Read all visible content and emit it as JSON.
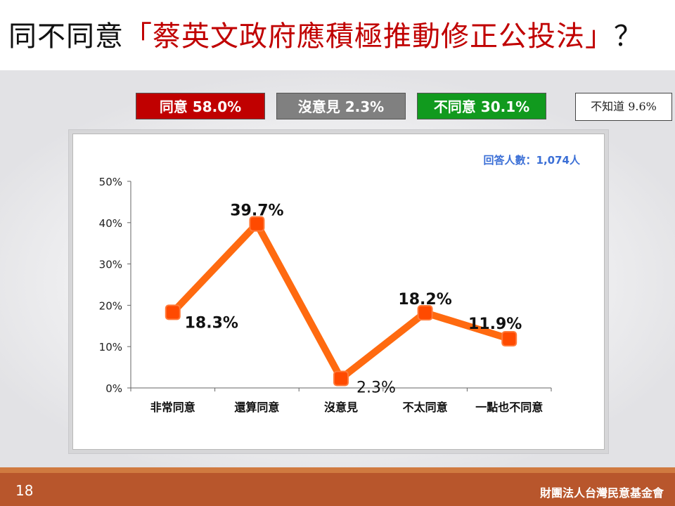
{
  "title": {
    "prefix": "同不同意",
    "highlight": "「蔡英文政府應積極推動修正公投法」",
    "suffix": "？"
  },
  "summary": {
    "agree": "同意 58.0%",
    "neutral": "沒意見 2.3%",
    "disagree": "不同意 30.1%",
    "unknown": "不知道 9.6%"
  },
  "colors": {
    "agree": "#c00000",
    "neutral": "#808080",
    "disagree": "#119a1e",
    "line": "#ff6a10",
    "marker": "#ff4a00",
    "respondents": "#3b6fd6"
  },
  "chart_data": {
    "type": "line",
    "respondents": "回答人數：1,074人",
    "categories": [
      "非常同意",
      "還算同意",
      "沒意見",
      "不太同意",
      "一點也不同意"
    ],
    "values": [
      18.3,
      39.7,
      2.3,
      18.2,
      11.9
    ],
    "value_labels": [
      "18.3%",
      "39.7%",
      "2.3%",
      "18.2%",
      "11.9%"
    ],
    "yticks": [
      "0%",
      "10%",
      "20%",
      "30%",
      "40%",
      "50%"
    ],
    "ylim": [
      0,
      50
    ],
    "grid": false,
    "legend": "none"
  },
  "footer": {
    "page": "18",
    "org": "財團法人台灣民意基金會"
  }
}
